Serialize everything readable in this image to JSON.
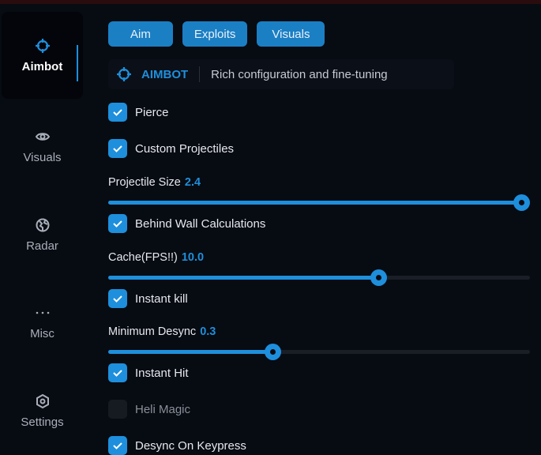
{
  "sidebar": {
    "items": [
      {
        "label": "Aimbot",
        "icon": "crosshair-icon",
        "active": true
      },
      {
        "label": "Visuals",
        "icon": "eye-icon"
      },
      {
        "label": "Radar",
        "icon": "globe-icon"
      },
      {
        "label": "Misc",
        "icon": "ellipsis-icon"
      },
      {
        "label": "Settings",
        "icon": "gear-icon"
      }
    ]
  },
  "tabs": [
    "Aim",
    "Exploits",
    "Visuals"
  ],
  "header": {
    "title": "AIMBOT",
    "description": "Rich configuration and fine-tuning"
  },
  "options": {
    "pierce": {
      "label": "Pierce",
      "checked": true
    },
    "custom_projectiles": {
      "label": "Custom Projectiles",
      "checked": true
    },
    "projectile_size": {
      "label": "Projectile Size",
      "value": "2.4",
      "fraction": 0.98
    },
    "behind_wall": {
      "label": "Behind Wall Calculations",
      "checked": true
    },
    "cache": {
      "label": "Cache(FPS!!)",
      "value": "10.0",
      "fraction": 0.64
    },
    "instant_kill": {
      "label": "Instant kill",
      "checked": true
    },
    "min_desync": {
      "label": "Minimum Desync",
      "value": "0.3",
      "fraction": 0.39
    },
    "instant_hit": {
      "label": "Instant Hit",
      "checked": true
    },
    "heli_magic": {
      "label": "Heli Magic",
      "checked": false
    },
    "desync_keypress": {
      "label": "Desync On Keypress",
      "checked": true
    }
  },
  "colors": {
    "accent": "#1e8fdc",
    "background": "#070b12"
  }
}
